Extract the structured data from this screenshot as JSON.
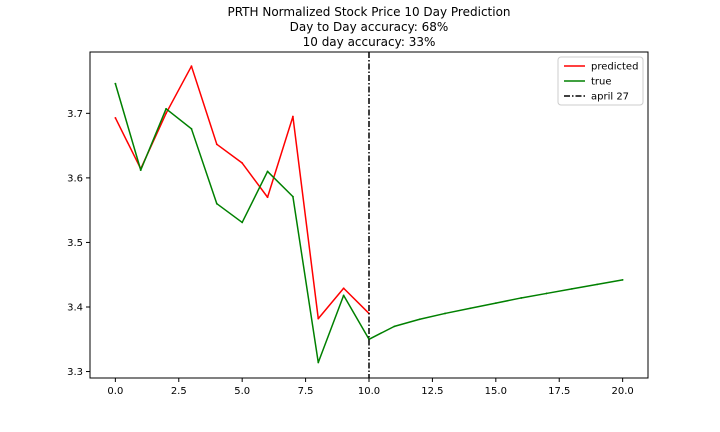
{
  "chart_data": {
    "type": "line",
    "title_lines": [
      "PRTH Normalized Stock Price 10 Day Prediction",
      "Day to Day accuracy: 68%",
      "10 day accuracy: 33%"
    ],
    "xlim": [
      -1.0,
      21.0
    ],
    "ylim": [
      3.29,
      3.795
    ],
    "xticks": [
      0.0,
      2.5,
      5.0,
      7.5,
      10.0,
      12.5,
      15.0,
      17.5,
      20.0
    ],
    "xtick_labels": [
      "0.0",
      "2.5",
      "5.0",
      "7.5",
      "10.0",
      "12.5",
      "15.0",
      "17.5",
      "20.0"
    ],
    "yticks": [
      3.3,
      3.4,
      3.5,
      3.6,
      3.7
    ],
    "ytick_labels": [
      "3.3",
      "3.4",
      "3.5",
      "3.6",
      "3.7"
    ],
    "grid": false,
    "legend_position": "top-right",
    "series": [
      {
        "name": "predicted",
        "color": "#ff0000",
        "x": [
          0,
          1,
          2,
          3,
          4,
          5,
          6,
          7,
          8,
          9,
          10
        ],
        "y": [
          3.693,
          3.614,
          3.7,
          3.773,
          3.652,
          3.623,
          3.57,
          3.695,
          3.382,
          3.429,
          3.39
        ]
      },
      {
        "name": "true",
        "color": "#008000",
        "x": [
          0,
          1,
          2,
          3,
          4,
          5,
          6,
          7,
          8,
          9,
          10,
          11,
          12,
          13,
          14,
          15,
          16,
          17,
          18,
          19,
          20
        ],
        "y": [
          3.746,
          3.612,
          3.707,
          3.676,
          3.56,
          3.531,
          3.61,
          3.571,
          3.314,
          3.418,
          3.35,
          3.37,
          3.381,
          3.39,
          3.398,
          3.406,
          3.414,
          3.421,
          3.428,
          3.435,
          3.442
        ]
      }
    ],
    "vline": {
      "x": 10,
      "name": "april 27",
      "color": "#000000",
      "style": "dash-dot"
    }
  }
}
